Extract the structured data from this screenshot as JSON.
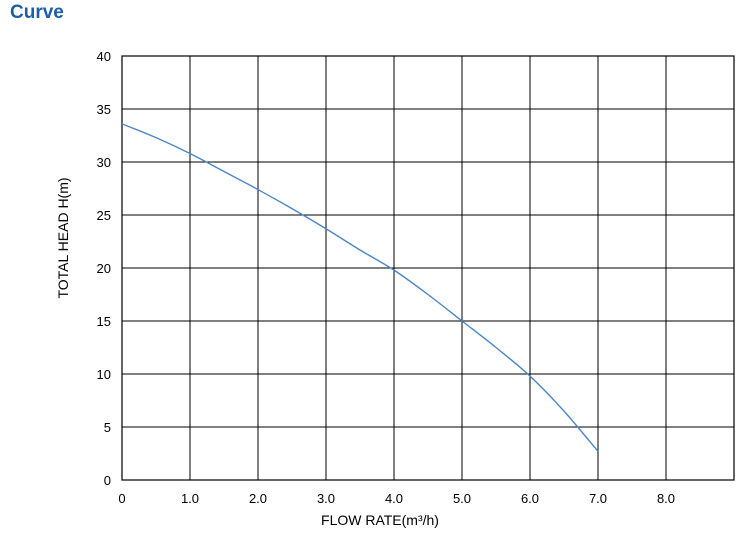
{
  "heading": "Curve",
  "chart_data": {
    "type": "line",
    "xlabel": "FLOW RATE(m³/h)",
    "ylabel": "TOTAL HEAD H(m)",
    "xlim": [
      0,
      9
    ],
    "ylim": [
      0,
      40
    ],
    "x_ticks": [
      0,
      1,
      2,
      3,
      4,
      5,
      6,
      7,
      8
    ],
    "x_tick_labels": [
      "0",
      "1.0",
      "2.0",
      "3.0",
      "4.0",
      "5.0",
      "6.0",
      "7.0",
      "8.0"
    ],
    "y_ticks": [
      0,
      5,
      10,
      15,
      20,
      25,
      30,
      35,
      40
    ],
    "y_tick_labels": [
      "0",
      "5",
      "10",
      "15",
      "20",
      "25",
      "30",
      "35",
      "40"
    ],
    "grid": true,
    "series_color": "#4a86c8",
    "x": [
      0,
      0.5,
      1.0,
      1.5,
      2.0,
      2.5,
      3.0,
      3.5,
      4.0,
      4.5,
      5.0,
      5.5,
      6.0,
      6.5,
      7.0
    ],
    "y": [
      33.6,
      32.3,
      30.8,
      29.1,
      27.4,
      25.6,
      23.7,
      21.7,
      19.8,
      17.5,
      15.0,
      12.5,
      9.8,
      6.5,
      2.7
    ]
  }
}
